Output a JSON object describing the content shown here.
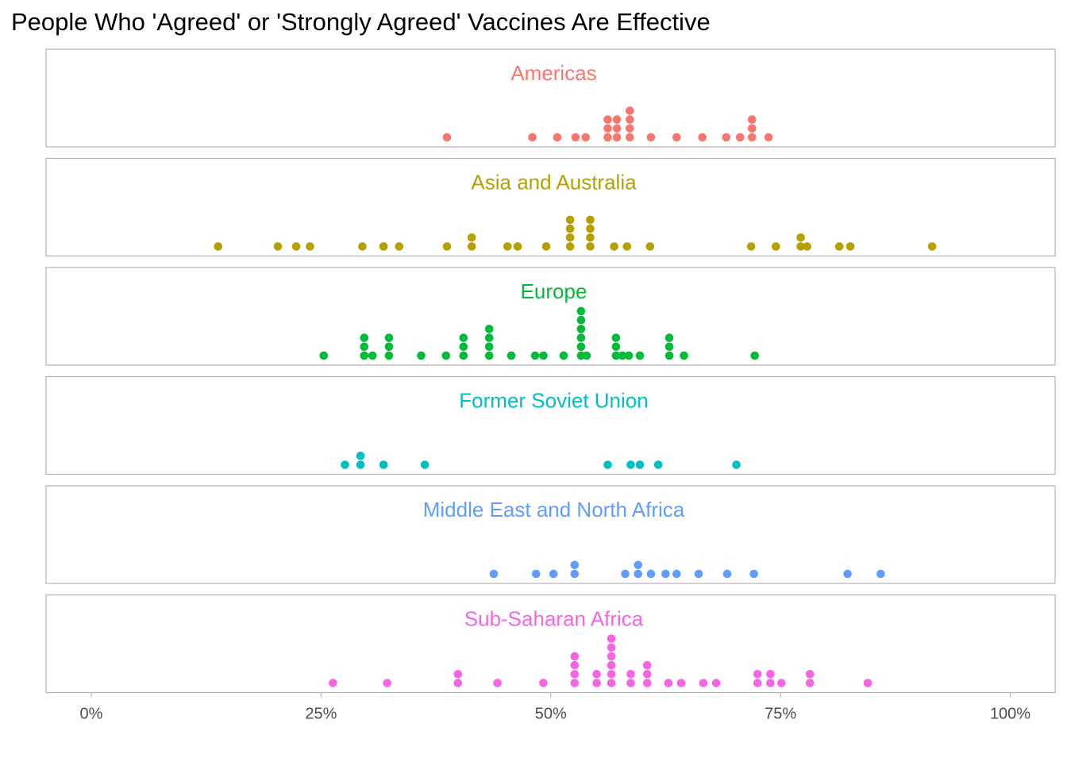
{
  "chart_data": {
    "type": "scatter",
    "subtype": "dot-plot-faceted",
    "title": "People Who 'Agreed' or 'Strongly Agreed' Vaccines Are Effective",
    "xlabel": "",
    "ylabel": "",
    "xlim": [
      0,
      100
    ],
    "x_ticks": [
      0,
      25,
      50,
      75,
      100
    ],
    "x_tick_labels": [
      "0%",
      "25%",
      "50%",
      "75%",
      "100%"
    ],
    "grid": false,
    "legend": "none",
    "panels": [
      {
        "name": "Americas",
        "color": "#F8766D",
        "values": [
          38.7,
          48,
          50.7,
          52.7,
          53.8,
          56.2,
          56.2,
          56.2,
          57.2,
          57.2,
          57.2,
          58.6,
          58.6,
          58.6,
          58.6,
          60.9,
          63.7,
          66.5,
          69.1,
          70.6,
          71.9,
          71.9,
          71.9,
          73.7
        ]
      },
      {
        "name": "Asia and Australia",
        "color": "#B79F00",
        "values": [
          13.8,
          20.3,
          22.3,
          23.8,
          29.5,
          31.8,
          33.5,
          38.7,
          41.4,
          41.4,
          45.3,
          46.4,
          49.5,
          52.1,
          52.1,
          52.1,
          52.1,
          54.3,
          54.3,
          54.3,
          54.3,
          56.9,
          58.3,
          60.8,
          71.8,
          74.5,
          77.2,
          77.2,
          77.9,
          81.4,
          82.6,
          91.5
        ]
      },
      {
        "name": "Europe",
        "color": "#00BA38",
        "values": [
          25.3,
          29.7,
          29.7,
          29.7,
          30.6,
          32.4,
          32.4,
          32.4,
          35.9,
          38.6,
          40.5,
          40.5,
          40.5,
          43.3,
          43.3,
          43.3,
          43.3,
          45.7,
          48.3,
          49.2,
          51.4,
          53.3,
          53.3,
          53.3,
          53.3,
          53.3,
          53.3,
          53.9,
          57.1,
          57.1,
          57.1,
          57.8,
          58.5,
          59.7,
          62.9,
          62.9,
          62.9,
          64.5,
          72.2
        ]
      },
      {
        "name": "Former Soviet Union",
        "color": "#00BFC4",
        "values": [
          27.6,
          29.3,
          29.3,
          31.8,
          36.3,
          56.2,
          58.7,
          59.7,
          61.7,
          70.2
        ]
      },
      {
        "name": "Middle East and North Africa",
        "color": "#619CFF",
        "values": [
          43.8,
          48.4,
          50.3,
          52.6,
          52.6,
          58.1,
          59.5,
          59.5,
          60.9,
          62.5,
          63.7,
          66.1,
          69.2,
          72.1,
          82.3,
          85.9
        ]
      },
      {
        "name": "Sub-Saharan Africa",
        "color": "#F564E3",
        "values": [
          26.3,
          32.2,
          39.9,
          39.9,
          44.2,
          49.2,
          52.6,
          52.6,
          52.6,
          52.6,
          55,
          55,
          56.6,
          56.6,
          56.6,
          56.6,
          56.6,
          56.6,
          58.7,
          58.7,
          60.5,
          60.5,
          60.5,
          62.8,
          64.2,
          66.6,
          68,
          72.5,
          72.5,
          73.9,
          73.9,
          75.1,
          78.2,
          78.2,
          84.5
        ]
      }
    ]
  }
}
